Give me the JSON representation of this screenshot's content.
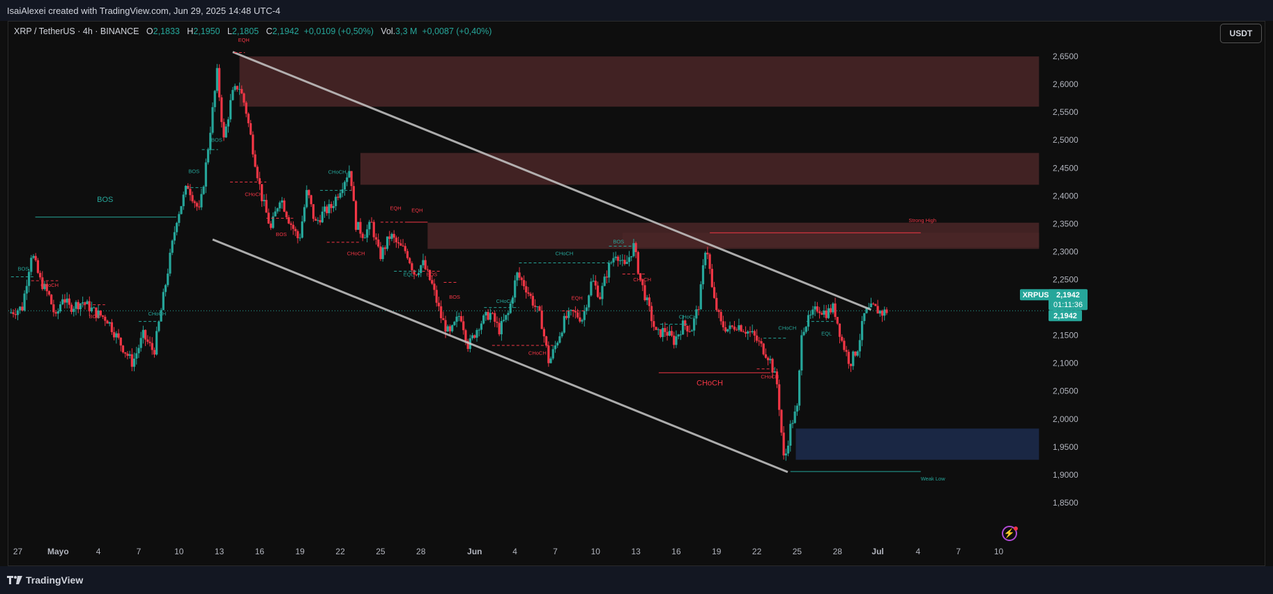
{
  "header": {
    "attribution": "IsaiAlexei created with TradingView.com, Jun 29, 2025 14:48 UTC-4"
  },
  "legend": {
    "symbol": "XRP / TetherUS · 4h · BINANCE",
    "o_label": "O",
    "o": "2,1833",
    "h_label": "H",
    "h": "2,1950",
    "l_label": "L",
    "l": "2,1805",
    "c_label": "C",
    "c": "2,1942",
    "change": "+0,0109 (+0,50%)",
    "vol_label": "Vol.",
    "vol": "3,3 M",
    "vol_change": "+0,0087 (+0,40%)"
  },
  "currency_button": "USDT",
  "footer": {
    "brand": "TradingView"
  },
  "colors": {
    "bull": "#26a69a",
    "bear": "#f23645",
    "supply_zone": "#4a2627",
    "demand_zone": "#1c2a4a",
    "channel_line": "#c8c8c8",
    "price_label_bg": "#26a69a"
  },
  "icons": [
    "tradingview-logo-icon",
    "lightning-bolt-icon"
  ],
  "chart_data": {
    "type": "candlestick",
    "y_axis": {
      "min": 1.82,
      "max": 2.7,
      "ticks": [
        "2,6500",
        "2,6000",
        "2,5500",
        "2,5000",
        "2,4500",
        "2,4000",
        "2,3500",
        "2,3000",
        "2,2500",
        "2,2000",
        "2,1500",
        "2,1000",
        "2,0500",
        "2,0000",
        "1,9500",
        "1,9000",
        "1,8500"
      ],
      "tick_values": [
        2.65,
        2.6,
        2.55,
        2.5,
        2.45,
        2.4,
        2.35,
        2.3,
        2.25,
        2.2,
        2.15,
        2.1,
        2.05,
        2.0,
        1.95,
        1.9,
        1.85
      ]
    },
    "x_axis": {
      "labels": [
        "27",
        "Mayo",
        "4",
        "7",
        "10",
        "13",
        "16",
        "19",
        "22",
        "25",
        "28",
        "Jun",
        "4",
        "7",
        "10",
        "13",
        "16",
        "19",
        "22",
        "25",
        "28",
        "Jul",
        "4",
        "7",
        "10"
      ],
      "label_pos": [
        0.5,
        3.5,
        6.5,
        9.5,
        12.5,
        15.5,
        18.5,
        21.5,
        24.5,
        27.5,
        30.5,
        34.5,
        37.5,
        40.5,
        43.5,
        46.5,
        49.5,
        52.5,
        55.5,
        58.5,
        61.5,
        64.5,
        67.5,
        70.5,
        73.5
      ],
      "day_min": -0.2,
      "day_max": 77
    },
    "price_path": [
      [
        0,
        2.19
      ],
      [
        1,
        2.2
      ],
      [
        1.7,
        2.3
      ],
      [
        2.3,
        2.25
      ],
      [
        3,
        2.22
      ],
      [
        3.5,
        2.18
      ],
      [
        4,
        2.22
      ],
      [
        4.5,
        2.2
      ],
      [
        5.5,
        2.21
      ],
      [
        6.5,
        2.19
      ],
      [
        7.3,
        2.18
      ],
      [
        8.2,
        2.14
      ],
      [
        9.2,
        2.1
      ],
      [
        10,
        2.15
      ],
      [
        10.8,
        2.12
      ],
      [
        11.3,
        2.19
      ],
      [
        12,
        2.29
      ],
      [
        12.5,
        2.36
      ],
      [
        13.3,
        2.42
      ],
      [
        14.2,
        2.37
      ],
      [
        14.8,
        2.48
      ],
      [
        15.5,
        2.62
      ],
      [
        16,
        2.5
      ],
      [
        16.6,
        2.58
      ],
      [
        17.1,
        2.6
      ],
      [
        17.6,
        2.56
      ],
      [
        18.2,
        2.48
      ],
      [
        18.8,
        2.4
      ],
      [
        19.5,
        2.34
      ],
      [
        20.2,
        2.4
      ],
      [
        20.8,
        2.36
      ],
      [
        21.6,
        2.32
      ],
      [
        22.2,
        2.41
      ],
      [
        22.8,
        2.35
      ],
      [
        23.4,
        2.37
      ],
      [
        24,
        2.38
      ],
      [
        24.8,
        2.42
      ],
      [
        25.4,
        2.45
      ],
      [
        25.8,
        2.35
      ],
      [
        26.4,
        2.33
      ],
      [
        27,
        2.35
      ],
      [
        27.6,
        2.29
      ],
      [
        28.4,
        2.33
      ],
      [
        29,
        2.31
      ],
      [
        29.6,
        2.3
      ],
      [
        30.2,
        2.26
      ],
      [
        30.8,
        2.28
      ],
      [
        31.5,
        2.24
      ],
      [
        32.2,
        2.18
      ],
      [
        32.8,
        2.15
      ],
      [
        33.6,
        2.19
      ],
      [
        34.2,
        2.13
      ],
      [
        35,
        2.17
      ],
      [
        35.8,
        2.19
      ],
      [
        36.5,
        2.16
      ],
      [
        37.2,
        2.19
      ],
      [
        37.8,
        2.26
      ],
      [
        38.4,
        2.24
      ],
      [
        39,
        2.21
      ],
      [
        39.6,
        2.18
      ],
      [
        40.2,
        2.1
      ],
      [
        40.8,
        2.14
      ],
      [
        41.4,
        2.18
      ],
      [
        42,
        2.19
      ],
      [
        42.7,
        2.18
      ],
      [
        43.4,
        2.25
      ],
      [
        44,
        2.22
      ],
      [
        44.6,
        2.27
      ],
      [
        45.2,
        2.3
      ],
      [
        45.8,
        2.27
      ],
      [
        46.5,
        2.31
      ],
      [
        47,
        2.25
      ],
      [
        47.6,
        2.2
      ],
      [
        48.2,
        2.15
      ],
      [
        48.8,
        2.16
      ],
      [
        49.5,
        2.14
      ],
      [
        50.2,
        2.17
      ],
      [
        50.8,
        2.16
      ],
      [
        51.4,
        2.21
      ],
      [
        51.9,
        2.32
      ],
      [
        52.4,
        2.22
      ],
      [
        53,
        2.17
      ],
      [
        53.6,
        2.16
      ],
      [
        54.2,
        2.17
      ],
      [
        54.8,
        2.16
      ],
      [
        55.4,
        2.15
      ],
      [
        56,
        2.13
      ],
      [
        56.6,
        2.11
      ],
      [
        57.2,
        2.06
      ],
      [
        57.7,
        1.92
      ],
      [
        58.2,
        1.99
      ],
      [
        58.7,
        2.02
      ],
      [
        59,
        2.16
      ],
      [
        59.6,
        2.18
      ],
      [
        60.2,
        2.2
      ],
      [
        60.8,
        2.19
      ],
      [
        61.4,
        2.2
      ],
      [
        62,
        2.14
      ],
      [
        62.6,
        2.1
      ],
      [
        63.2,
        2.13
      ],
      [
        63.7,
        2.19
      ],
      [
        64.3,
        2.2
      ],
      [
        65,
        2.19
      ],
      [
        65.3,
        2.194
      ]
    ],
    "channel": {
      "upper": [
        [
          16.5,
          2.658
        ],
        [
          64,
          2.196
        ]
      ],
      "lower": [
        [
          15,
          2.322
        ],
        [
          57.8,
          1.905
        ]
      ]
    },
    "zones": [
      {
        "kind": "supply",
        "x0": 17,
        "x1": 76.5,
        "y0": 2.56,
        "y1": 2.65
      },
      {
        "kind": "supply",
        "x0": 26,
        "x1": 76.5,
        "y0": 2.42,
        "y1": 2.477
      },
      {
        "kind": "supply",
        "x0": 31,
        "x1": 76.5,
        "y0": 2.305,
        "y1": 2.352
      },
      {
        "kind": "supply",
        "x0": 45.5,
        "x1": 76.5,
        "y0": 2.308,
        "y1": 2.334
      },
      {
        "kind": "demand",
        "x0": 58.4,
        "x1": 76.5,
        "y0": 1.927,
        "y1": 1.983
      }
    ],
    "levels": [
      {
        "label": "BOS",
        "kind": "bull",
        "x0": 1.8,
        "x1": 12.3,
        "y": 2.362,
        "lx": 7,
        "ly": 2.389,
        "big": true
      },
      {
        "label": "BOS",
        "kind": "bull",
        "x0": 0,
        "x1": 1.8,
        "y": 2.255,
        "lx": 0.5,
        "ly": 2.266
      },
      {
        "label": "CHoCH",
        "kind": "bear",
        "x0": 1.5,
        "x1": 3.5,
        "y": 2.248,
        "lx": 2.2,
        "ly": 2.237
      },
      {
        "label": "BOS",
        "kind": "bear",
        "x0": 5,
        "x1": 7,
        "y": 2.205,
        "lx": 5.8,
        "ly": 2.181
      },
      {
        "label": "CHoCH",
        "kind": "bull",
        "x0": 9.5,
        "x1": 11,
        "y": 2.175,
        "lx": 10.2,
        "ly": 2.186
      },
      {
        "label": "BOS",
        "kind": "bull",
        "x0": 13,
        "x1": 14.2,
        "y": 2.415,
        "lx": 13.2,
        "ly": 2.441
      },
      {
        "label": "BOS",
        "kind": "bull",
        "x0": 14.2,
        "x1": 15.4,
        "y": 2.483,
        "lx": 14.9,
        "ly": 2.497
      },
      {
        "label": "EQH",
        "kind": "bear",
        "x0": 16.6,
        "x1": 17.4,
        "y": 2.657,
        "lx": 16.9,
        "ly": 2.676
      },
      {
        "label": "CHoCH",
        "kind": "bear",
        "x0": 16.3,
        "x1": 19,
        "y": 2.425,
        "lx": 17.4,
        "ly": 2.4
      },
      {
        "label": "BOS",
        "kind": "bear",
        "x0": 19,
        "x1": 21,
        "y": 2.36,
        "lx": 19.7,
        "ly": 2.328
      },
      {
        "label": "CHoCH",
        "kind": "bull",
        "x0": 23,
        "x1": 25.3,
        "y": 2.41,
        "lx": 23.6,
        "ly": 2.44
      },
      {
        "label": "CHoCH",
        "kind": "bear",
        "x0": 23.5,
        "x1": 26,
        "y": 2.317,
        "lx": 25,
        "ly": 2.294
      },
      {
        "label": "EQH",
        "kind": "bear",
        "x0": 27.5,
        "x1": 31,
        "y": 2.353,
        "lx": 28.2,
        "ly": 2.375
      },
      {
        "label": "EQH",
        "kind": "bear",
        "x0": 29.5,
        "x1": 31,
        "y": 2.353,
        "lx": 29.8,
        "ly": 2.371
      },
      {
        "label": "EQL",
        "kind": "bull",
        "x0": 28.5,
        "x1": 30.6,
        "y": 2.265,
        "lx": 29.2,
        "ly": 2.256
      },
      {
        "label": "BOS",
        "kind": "bear",
        "x0": 30.6,
        "x1": 32,
        "y": 2.265,
        "lx": 30.9,
        "ly": 2.256
      },
      {
        "label": "BOS",
        "kind": "bear",
        "x0": 32.2,
        "x1": 33.2,
        "y": 2.245,
        "lx": 32.6,
        "ly": 2.216
      },
      {
        "label": "CHoCH",
        "kind": "bull",
        "x0": 35.2,
        "x1": 37.8,
        "y": 2.2,
        "lx": 36.1,
        "ly": 2.208
      },
      {
        "label": "CHoCH",
        "kind": "bear",
        "x0": 35.8,
        "x1": 40.4,
        "y": 2.132,
        "lx": 38.5,
        "ly": 2.115
      },
      {
        "label": "EQH",
        "kind": "bear",
        "x0": 41,
        "x1": 42.8,
        "y": 2.194,
        "lx": 41.7,
        "ly": 2.214
      },
      {
        "label": "CHoCH",
        "kind": "bull",
        "x0": 37.8,
        "x1": 44.5,
        "y": 2.28,
        "lx": 40.5,
        "ly": 2.294
      },
      {
        "label": "BOS",
        "kind": "bull",
        "x0": 44.5,
        "x1": 46.5,
        "y": 2.31,
        "lx": 44.8,
        "ly": 2.315
      },
      {
        "label": "CHoCH",
        "kind": "bear",
        "x0": 45.5,
        "x1": 47.3,
        "y": 2.26,
        "lx": 46.3,
        "ly": 2.247
      },
      {
        "label": "CHoCH",
        "kind": "bull",
        "x0": 48.3,
        "x1": 50.5,
        "y": 2.17,
        "lx": 49.7,
        "ly": 2.18
      },
      {
        "label": "CHoCH",
        "kind": "bear",
        "x0": 48.2,
        "x1": 56.5,
        "y": 2.083,
        "lx": 52,
        "ly": 2.06,
        "big": true
      },
      {
        "label": "CHoCH",
        "kind": "bear",
        "x0": 55.5,
        "x1": 57,
        "y": 2.09,
        "lx": 55.8,
        "ly": 2.073
      },
      {
        "label": "CHoCH",
        "kind": "bull",
        "x0": 56,
        "x1": 57.8,
        "y": 2.145,
        "lx": 57.1,
        "ly": 2.16
      },
      {
        "label": "EQL",
        "kind": "bull",
        "x0": 59.2,
        "x1": 61.2,
        "y": 2.175,
        "lx": 60.3,
        "ly": 2.15
      },
      {
        "label": "Strong High",
        "kind": "bear",
        "x0": 52,
        "x1": 67.7,
        "y": 2.334,
        "lx": 66.8,
        "ly": 2.353
      },
      {
        "label": "Weak Low",
        "kind": "bull",
        "x0": 58,
        "x1": 67.7,
        "y": 1.906,
        "lx": 67.7,
        "ly": 1.89
      }
    ],
    "current_price": {
      "value": 2.1942,
      "label": "2,1942",
      "symbol": "XRPUSDT",
      "countdown": "01:11:36"
    }
  }
}
